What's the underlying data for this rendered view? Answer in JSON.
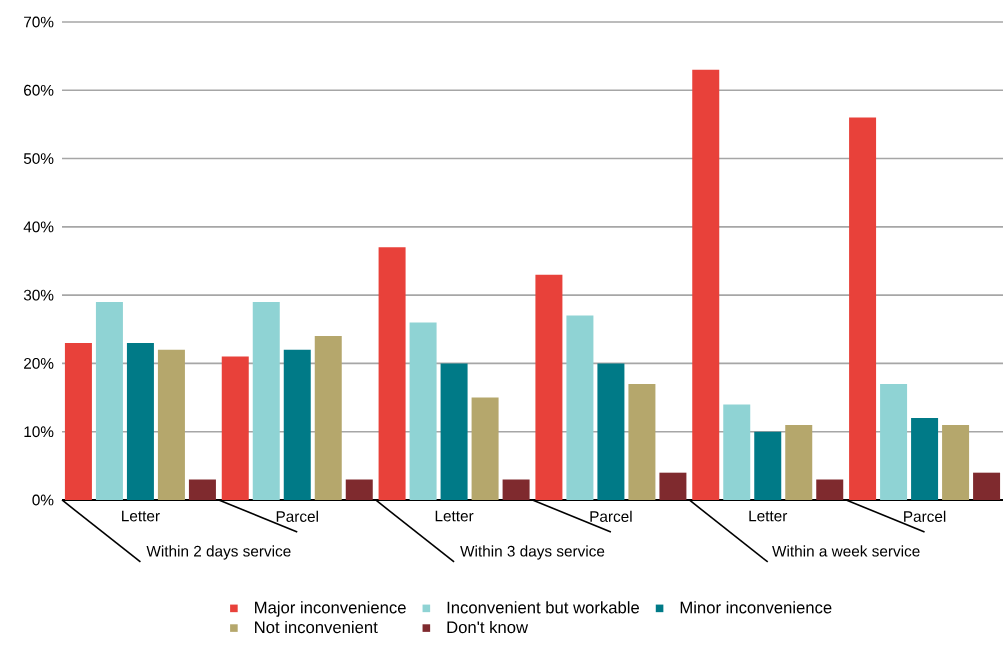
{
  "chart_data": {
    "type": "bar",
    "categories": [
      "Letter",
      "Parcel",
      "Letter",
      "Parcel",
      "Letter",
      "Parcel"
    ],
    "series": [
      {
        "name": "Major inconvenience",
        "color": "#e8413a",
        "values": [
          23,
          21,
          37,
          33,
          63,
          56
        ]
      },
      {
        "name": "Inconvenient but workable",
        "color": "#8fd3d4",
        "values": [
          29,
          29,
          26,
          27,
          14,
          17
        ]
      },
      {
        "name": "Minor inconvenience",
        "color": "#007a87",
        "values": [
          23,
          22,
          20,
          20,
          10,
          12
        ]
      },
      {
        "name": "Not inconvenient",
        "color": "#b5a76c",
        "values": [
          22,
          24,
          15,
          17,
          11,
          11
        ]
      },
      {
        "name": "Don't know",
        "color": "#7f2a2e",
        "values": [
          3,
          3,
          3,
          4,
          3,
          4
        ]
      }
    ],
    "ylim": [
      0,
      70
    ],
    "yticks": [
      {
        "value": 0,
        "label": "0%"
      },
      {
        "value": 10,
        "label": "10%"
      },
      {
        "value": 20,
        "label": "20%"
      },
      {
        "value": 30,
        "label": "30%"
      },
      {
        "value": 40,
        "label": "40%"
      },
      {
        "value": 50,
        "label": "50%"
      },
      {
        "value": 60,
        "label": "60%"
      },
      {
        "value": 70,
        "label": "70%"
      }
    ],
    "grid": "y",
    "legend": "bottom",
    "annotations": [
      "Within 2 days service",
      "Within 3 days service",
      "Within a week service"
    ]
  }
}
